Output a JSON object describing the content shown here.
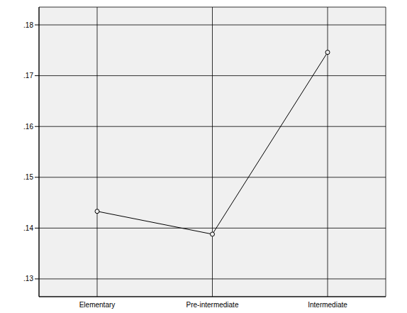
{
  "chart_data": {
    "type": "line",
    "categories": [
      "Elementary",
      "Pre-intermediate",
      "Intermediate"
    ],
    "values": [
      0.1433,
      0.1388,
      0.1746
    ],
    "color": "#000000",
    "marker": "circle",
    "ylim": [
      0.1265,
      0.1835
    ],
    "yticks": [
      {
        "value": 0.13,
        "label": ".13"
      },
      {
        "value": 0.14,
        "label": ".14"
      },
      {
        "value": 0.15,
        "label": ".15"
      },
      {
        "value": 0.16,
        "label": ".16"
      },
      {
        "value": 0.17,
        "label": ".17"
      },
      {
        "value": 0.18,
        "label": ".18"
      }
    ],
    "grid": true
  }
}
